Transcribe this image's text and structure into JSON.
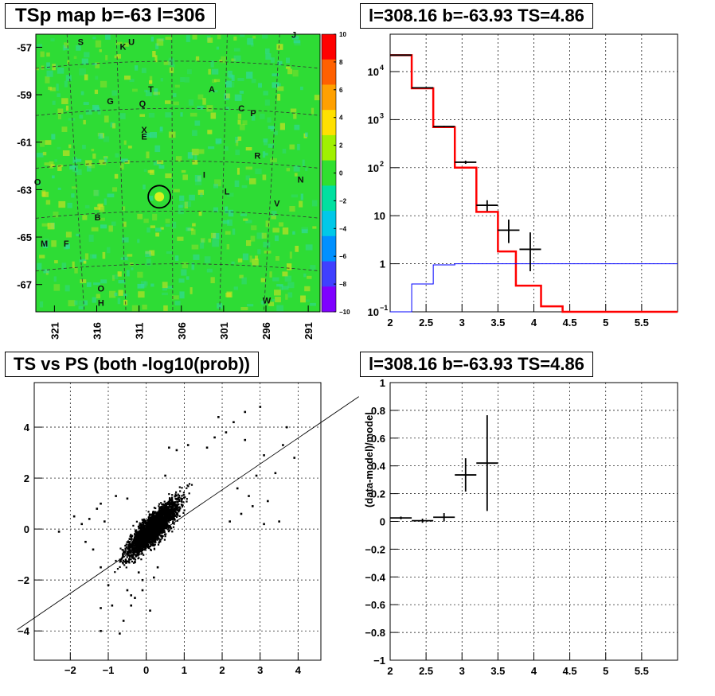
{
  "chart_data": [
    {
      "type": "heatmap",
      "title": "TSp map b=-63 l=306",
      "x_ticks": [
        "321",
        "316",
        "311",
        "306",
        "301",
        "296",
        "291"
      ],
      "y_ticks": [
        "-57",
        "-59",
        "-61",
        "-63",
        "-65",
        "-67"
      ],
      "colorbar_ticks": [
        "10",
        "8",
        "6",
        "4",
        "2",
        "0",
        "−2",
        "−4",
        "−6",
        "−8",
        "−10"
      ],
      "colorbar_range": [
        -10,
        10
      ],
      "background_value": 0,
      "colors": {
        "background": "#2edc35",
        "hot": "#d8e020",
        "cool": "#30d8a0"
      },
      "source_labels": [
        {
          "text": "S",
          "l": 317.9,
          "b": -56.9
        },
        {
          "text": "K",
          "l": 312.9,
          "b": -57.1
        },
        {
          "text": "U",
          "l": 311.9,
          "b": -56.9
        },
        {
          "text": "J",
          "l": 292.7,
          "b": -56.6
        },
        {
          "text": "T",
          "l": 309.6,
          "b": -58.9
        },
        {
          "text": "A",
          "l": 302.4,
          "b": -58.9
        },
        {
          "text": "G",
          "l": 314.4,
          "b": -59.4
        },
        {
          "text": "Q",
          "l": 310.6,
          "b": -59.5
        },
        {
          "text": "C",
          "l": 298.9,
          "b": -59.7
        },
        {
          "text": "P",
          "l": 297.5,
          "b": -59.9
        },
        {
          "text": "X",
          "l": 310.4,
          "b": -60.6
        },
        {
          "text": "E",
          "l": 310.4,
          "b": -60.9
        },
        {
          "text": "R",
          "l": 297.0,
          "b": -61.7
        },
        {
          "text": "I",
          "l": 303.3,
          "b": -62.5
        },
        {
          "text": "N",
          "l": 291.9,
          "b": -62.7
        },
        {
          "text": "O",
          "l": 323.0,
          "b": -62.8
        },
        {
          "text": "L",
          "l": 300.6,
          "b": -63.2
        },
        {
          "text": "V",
          "l": 294.7,
          "b": -63.7
        },
        {
          "text": "B",
          "l": 315.9,
          "b": -64.3
        },
        {
          "text": "M",
          "l": 322.2,
          "b": -65.4
        },
        {
          "text": "F",
          "l": 319.6,
          "b": -65.4
        },
        {
          "text": "O",
          "l": 315.5,
          "b": -67.3
        },
        {
          "text": "H",
          "l": 315.5,
          "b": -67.9
        },
        {
          "text": "W",
          "l": 295.9,
          "b": -67.8
        }
      ],
      "hot_spot": {
        "l": 308.6,
        "b": -63.3
      }
    },
    {
      "type": "line",
      "title": "l=308.16 b=-63.93 TS=4.86",
      "log_y": true,
      "xlim": [
        2,
        6
      ],
      "x_ticks": [
        "2",
        "2.5",
        "3",
        "3.5",
        "4",
        "4.5",
        "5",
        "5.5"
      ],
      "y_ticks": [
        {
          "value": 0.1,
          "base": "10",
          "exp": "−1"
        },
        {
          "value": 1,
          "base": "1",
          "exp": ""
        },
        {
          "value": 10,
          "base": "10",
          "exp": ""
        },
        {
          "value": 100,
          "base": "10",
          "exp": "2"
        },
        {
          "value": 1000,
          "base": "10",
          "exp": "3"
        },
        {
          "value": 10000,
          "base": "10",
          "exp": "4"
        }
      ],
      "ylim": [
        0.1,
        60000
      ],
      "bin_edges": [
        2.0,
        2.3,
        2.6,
        2.9,
        3.2,
        3.5,
        3.75,
        4.1,
        4.4,
        6.0
      ],
      "series": [
        {
          "color": "#ff0000",
          "values": [
            22000,
            4500,
            700,
            100,
            12,
            1.8,
            0.35,
            0.13,
            0.1
          ]
        },
        {
          "color": "#0000ff",
          "values": [
            0.1,
            0.38,
            0.95,
            1.0,
            1.0,
            1.0,
            1.0,
            1.0,
            1.0
          ]
        }
      ],
      "data_points": [
        {
          "x": 2.15,
          "y": 22000,
          "xerr": 0.15,
          "ylo": 21800,
          "yhi": 22200
        },
        {
          "x": 2.45,
          "y": 4600,
          "xerr": 0.15,
          "ylo": 4550,
          "yhi": 4650
        },
        {
          "x": 2.75,
          "y": 720,
          "xerr": 0.15,
          "ylo": 700,
          "yhi": 740
        },
        {
          "x": 3.05,
          "y": 130,
          "xerr": 0.15,
          "ylo": 120,
          "yhi": 140
        },
        {
          "x": 3.35,
          "y": 16.5,
          "xerr": 0.15,
          "ylo": 12.5,
          "yhi": 21
        },
        {
          "x": 3.65,
          "y": 5.0,
          "xerr": 0.15,
          "ylo": 2.7,
          "yhi": 8.3
        },
        {
          "x": 3.95,
          "y": 2.0,
          "xerr": 0.15,
          "ylo": 0.7,
          "yhi": 4.5
        }
      ]
    },
    {
      "type": "scatter",
      "title": "TS vs PS (both -log10(prob))",
      "xlim": [
        -2.95,
        4.6
      ],
      "ylim": [
        -5.15,
        5.75
      ],
      "x_ticks": [
        {
          "value": -2,
          "label": "−2"
        },
        {
          "value": -1,
          "label": "−1"
        },
        {
          "value": 0,
          "label": "0"
        },
        {
          "value": 1,
          "label": "1"
        },
        {
          "value": 2,
          "label": "2"
        },
        {
          "value": 3,
          "label": "3"
        },
        {
          "value": 4,
          "label": "4"
        }
      ],
      "y_ticks": [
        {
          "value": -4,
          "label": "−4"
        },
        {
          "value": -2,
          "label": "−2"
        },
        {
          "value": 0,
          "label": "0"
        },
        {
          "value": 2,
          "label": "2"
        },
        {
          "value": 4,
          "label": "4"
        }
      ],
      "reference_line": {
        "x1": -3.4,
        "y1": -3.95,
        "x2": 5.6,
        "y2": 5.2
      },
      "points": [
        [
          -2.3,
          -0.1
        ],
        [
          -1.9,
          0.5
        ],
        [
          -1.7,
          0.2
        ],
        [
          -1.5,
          0.4
        ],
        [
          -1.3,
          0.8
        ],
        [
          -1.2,
          1.0
        ],
        [
          -1.1,
          0.3
        ],
        [
          -1.6,
          -0.5
        ],
        [
          -1.4,
          -0.8
        ],
        [
          -1.2,
          -1.5
        ],
        [
          -1.0,
          -2.2
        ],
        [
          -1.2,
          -3.1
        ],
        [
          -1.2,
          -4.0
        ],
        [
          -0.7,
          -4.1
        ],
        [
          -0.6,
          -3.6
        ],
        [
          -0.9,
          -3.0
        ],
        [
          -0.4,
          -3.0
        ],
        [
          -0.3,
          -2.7
        ],
        [
          -0.5,
          -2.4
        ],
        [
          -0.1,
          -2.0
        ],
        [
          -0.1,
          -2.4
        ],
        [
          0.2,
          -1.9
        ],
        [
          -0.8,
          1.3
        ],
        [
          -0.5,
          1.2
        ],
        [
          0.5,
          2.1
        ],
        [
          0.6,
          3.2
        ],
        [
          0.8,
          3.1
        ],
        [
          1.1,
          3.3
        ],
        [
          1.6,
          3.2
        ],
        [
          1.8,
          3.6
        ],
        [
          2.1,
          3.8
        ],
        [
          2.3,
          4.2
        ],
        [
          1.9,
          4.4
        ],
        [
          2.6,
          4.6
        ],
        [
          3.0,
          4.8
        ],
        [
          2.6,
          3.5
        ],
        [
          3.1,
          2.9
        ],
        [
          3.4,
          2.2
        ],
        [
          3.6,
          3.3
        ],
        [
          3.9,
          2.8
        ],
        [
          3.7,
          4.0
        ],
        [
          3.2,
          1.1
        ],
        [
          2.8,
          0.9
        ],
        [
          3.1,
          0.2
        ],
        [
          2.4,
          1.6
        ],
        [
          2.9,
          2.1
        ],
        [
          2.5,
          0.6
        ],
        [
          2.2,
          0.3
        ],
        [
          2.7,
          1.3
        ],
        [
          3.5,
          0.3
        ],
        [
          0.3,
          -1.5
        ],
        [
          -0.2,
          -1.7
        ],
        [
          -0.3,
          -1.3
        ],
        [
          0.1,
          -3.2
        ],
        [
          -0.4,
          -2.6
        ]
      ]
    },
    {
      "type": "line",
      "title": "l=308.16 b=-63.93 TS=4.86",
      "ylabel": "(data-model)/model",
      "xlim": [
        2,
        6
      ],
      "ylim": [
        -1,
        1
      ],
      "x_ticks": [
        "2",
        "2.5",
        "3",
        "3.5",
        "4",
        "4.5",
        "5",
        "5.5"
      ],
      "y_ticks": [
        "−1",
        "−0.8",
        "−0.6",
        "−0.4",
        "−0.2",
        "0",
        "0.2",
        "0.4",
        "0.6",
        "0.8",
        "1"
      ],
      "data_points": [
        {
          "x": 2.15,
          "y": 0.025,
          "xerr": 0.15,
          "yerr": 0.01
        },
        {
          "x": 2.45,
          "y": 0.005,
          "xerr": 0.15,
          "yerr": 0.015
        },
        {
          "x": 2.75,
          "y": 0.03,
          "xerr": 0.15,
          "yerr": 0.03
        },
        {
          "x": 3.05,
          "y": 0.335,
          "xerr": 0.15,
          "yerr": 0.12
        },
        {
          "x": 3.35,
          "y": 0.42,
          "xerr": 0.15,
          "yerr": 0.345
        }
      ]
    }
  ]
}
